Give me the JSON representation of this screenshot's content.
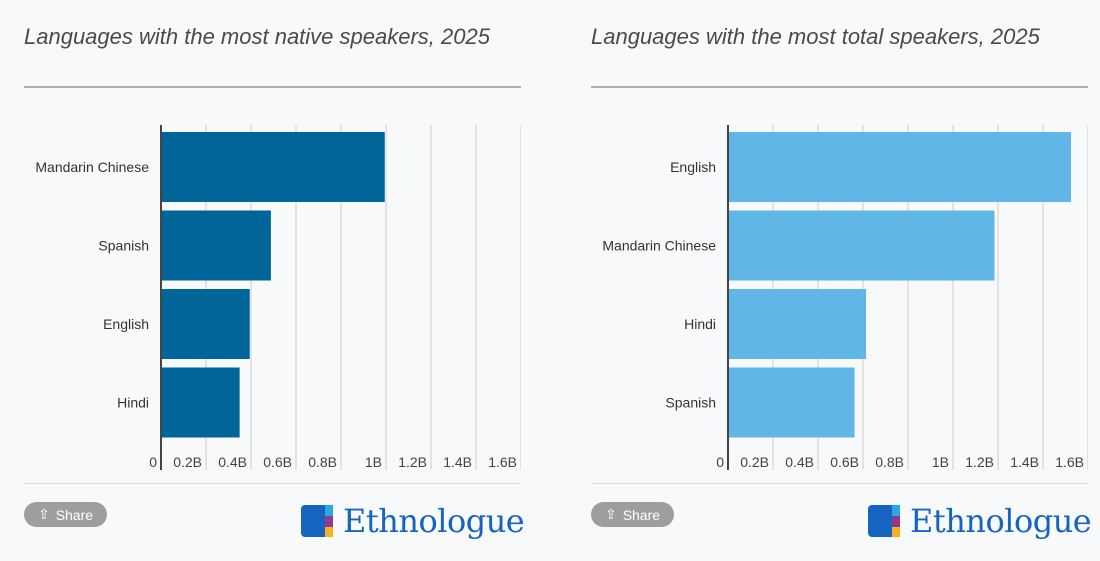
{
  "share_label": "Share",
  "logo_text": "Ethnologue",
  "chart_data": [
    {
      "type": "bar",
      "orientation": "horizontal",
      "title": "Languages with the most native speakers, 2025",
      "categories": [
        "Mandarin Chinese",
        "Spanish",
        "English",
        "Hindi"
      ],
      "values": [
        0.99,
        0.484,
        0.39,
        0.345
      ],
      "unit": "billions",
      "xlim": [
        0,
        1.6
      ],
      "ticks": [
        "0",
        "0.2B",
        "0.4B",
        "0.6B",
        "0.8B",
        "1B",
        "1.2B",
        "1.4B",
        "1.6B"
      ],
      "grid": true,
      "color": "#006699"
    },
    {
      "type": "bar",
      "orientation": "horizontal",
      "title": "Languages with the most total speakers, 2025",
      "categories": [
        "English",
        "Mandarin Chinese",
        "Hindi",
        "Spanish"
      ],
      "values": [
        1.52,
        1.18,
        0.609,
        0.558
      ],
      "unit": "billions",
      "xlim": [
        0,
        1.6
      ],
      "ticks": [
        "0",
        "0.2B",
        "0.4B",
        "0.6B",
        "0.8B",
        "1B",
        "1.2B",
        "1.4B",
        "1.6B"
      ],
      "grid": true,
      "color": "#60b6e4"
    }
  ]
}
